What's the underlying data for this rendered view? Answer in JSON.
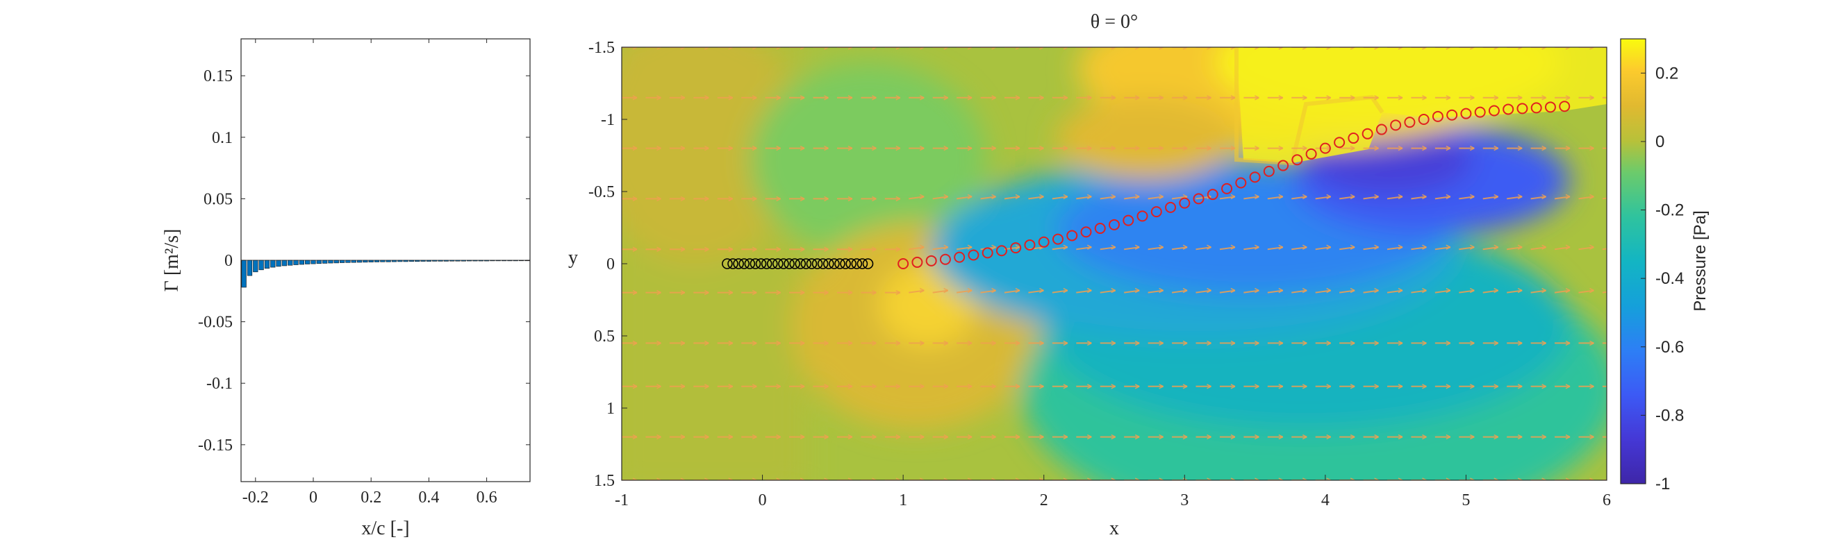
{
  "chart_data": [
    {
      "type": "bar",
      "title": "",
      "xlabel": "x/c [-]",
      "ylabel": "Γ [m²/s]",
      "xlim": [
        -0.25,
        0.75
      ],
      "ylim": [
        -0.18,
        0.18
      ],
      "xticks": [
        "-0.2",
        "0",
        "0.2",
        "0.4",
        "0.6"
      ],
      "yticks": [
        "0.15",
        "0.1",
        "0.05",
        "0",
        "-0.05",
        "-0.1",
        "-0.15"
      ],
      "grid": false,
      "bar_color": "#0072BD",
      "x": [
        -0.24,
        -0.22,
        -0.2,
        -0.18,
        -0.16,
        -0.14,
        -0.12,
        -0.1,
        -0.08,
        -0.06,
        -0.04,
        -0.02,
        0.0,
        0.02,
        0.04,
        0.06,
        0.08,
        0.1,
        0.12,
        0.14,
        0.16,
        0.18,
        0.2,
        0.22,
        0.24,
        0.26,
        0.28,
        0.3,
        0.32,
        0.34,
        0.36,
        0.38,
        0.4,
        0.42,
        0.44,
        0.46,
        0.48,
        0.5,
        0.52,
        0.54,
        0.56,
        0.58,
        0.6,
        0.62,
        0.64,
        0.66,
        0.68,
        0.7,
        0.72,
        0.74
      ],
      "values": [
        -0.022,
        -0.0125,
        -0.0095,
        -0.0078,
        -0.0066,
        -0.0057,
        -0.005,
        -0.0045,
        -0.0041,
        -0.0037,
        -0.0034,
        -0.0031,
        -0.0029,
        -0.0027,
        -0.0025,
        -0.0023,
        -0.0022,
        -0.002,
        -0.0019,
        -0.0018,
        -0.0017,
        -0.0016,
        -0.0015,
        -0.0014,
        -0.0013,
        -0.0013,
        -0.0012,
        -0.0011,
        -0.0011,
        -0.001,
        -0.001,
        -0.0009,
        -0.0009,
        -0.0008,
        -0.0008,
        -0.0008,
        -0.0007,
        -0.0007,
        -0.0007,
        -0.0006,
        -0.0006,
        -0.0006,
        -0.0006,
        -0.0005,
        -0.0005,
        -0.0005,
        -0.0005,
        -0.0005,
        -0.0004,
        -0.0004
      ]
    },
    {
      "type": "heatmap",
      "title": "θ = 0°",
      "xlabel": "x",
      "ylabel": "y",
      "xlim": [
        -1,
        6
      ],
      "ylim": [
        1.5,
        -1.5
      ],
      "xticks": [
        "-1",
        "0",
        "1",
        "2",
        "3",
        "4",
        "5",
        "6"
      ],
      "yticks": [
        "-1.5",
        "-1",
        "-0.5",
        "0",
        "0.5",
        "1",
        "1.5"
      ],
      "colorbar": {
        "label": "Pressure [Pa]",
        "range": [
          -1,
          0.3
        ],
        "ticks": [
          "0.2",
          "0",
          "-0.2",
          "-0.4",
          "-0.6",
          "-0.8",
          "-1"
        ],
        "colormap": "parula"
      },
      "airfoil": {
        "color": "#000000",
        "x_start": -0.25,
        "x_end": 0.75,
        "y": 0,
        "count": 26
      },
      "wake_points": {
        "color": "#E02020",
        "x": [
          1.0,
          1.1,
          1.2,
          1.3,
          1.4,
          1.5,
          1.6,
          1.7,
          1.8,
          1.9,
          2.0,
          2.1,
          2.2,
          2.3,
          2.4,
          2.5,
          2.6,
          2.7,
          2.8,
          2.9,
          3.0,
          3.1,
          3.2,
          3.3,
          3.4,
          3.5,
          3.6,
          3.7,
          3.8,
          3.9,
          4.0,
          4.1,
          4.2,
          4.3,
          4.4,
          4.5,
          4.6,
          4.7,
          4.8,
          4.9,
          5.0,
          5.1,
          5.2,
          5.3,
          5.4,
          5.5,
          5.6,
          5.7
        ],
        "y": [
          0.0,
          -0.01,
          -0.02,
          -0.03,
          -0.045,
          -0.06,
          -0.075,
          -0.09,
          -0.11,
          -0.13,
          -0.15,
          -0.17,
          -0.195,
          -0.22,
          -0.245,
          -0.27,
          -0.3,
          -0.33,
          -0.36,
          -0.39,
          -0.42,
          -0.45,
          -0.48,
          -0.52,
          -0.56,
          -0.6,
          -0.64,
          -0.68,
          -0.72,
          -0.76,
          -0.8,
          -0.84,
          -0.87,
          -0.9,
          -0.93,
          -0.96,
          -0.98,
          -1.0,
          -1.02,
          -1.03,
          -1.04,
          -1.05,
          -1.06,
          -1.07,
          -1.075,
          -1.08,
          -1.085,
          -1.09
        ]
      },
      "vector_rows_y": [
        -1.5,
        -1.15,
        -0.8,
        -0.45,
        -0.1,
        0.2,
        0.55,
        0.85,
        1.2,
        1.5
      ],
      "vector_color": "#F0A050"
    }
  ]
}
